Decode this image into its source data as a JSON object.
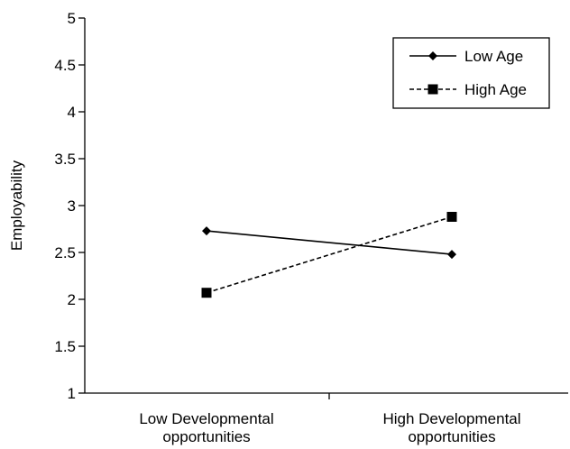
{
  "chart_data": {
    "type": "line",
    "title": "",
    "xlabel": "",
    "ylabel": "Employability",
    "ylim": [
      1,
      5
    ],
    "yticks": [
      "1",
      "1.5",
      "2",
      "2.5",
      "3",
      "3.5",
      "4",
      "4.5",
      "5"
    ],
    "categories": [
      [
        "Low Developmental",
        "opportunities"
      ],
      [
        "High Developmental",
        "opportunities"
      ]
    ],
    "series": [
      {
        "name": "Low Age",
        "values": [
          2.73,
          2.48
        ],
        "marker": "diamond",
        "dash": "solid",
        "color": "#000000"
      },
      {
        "name": "High Age",
        "values": [
          2.07,
          2.88
        ],
        "marker": "square",
        "dash": "dashed",
        "color": "#000000"
      }
    ],
    "legend": {
      "position": "top-right"
    },
    "grid": false
  }
}
